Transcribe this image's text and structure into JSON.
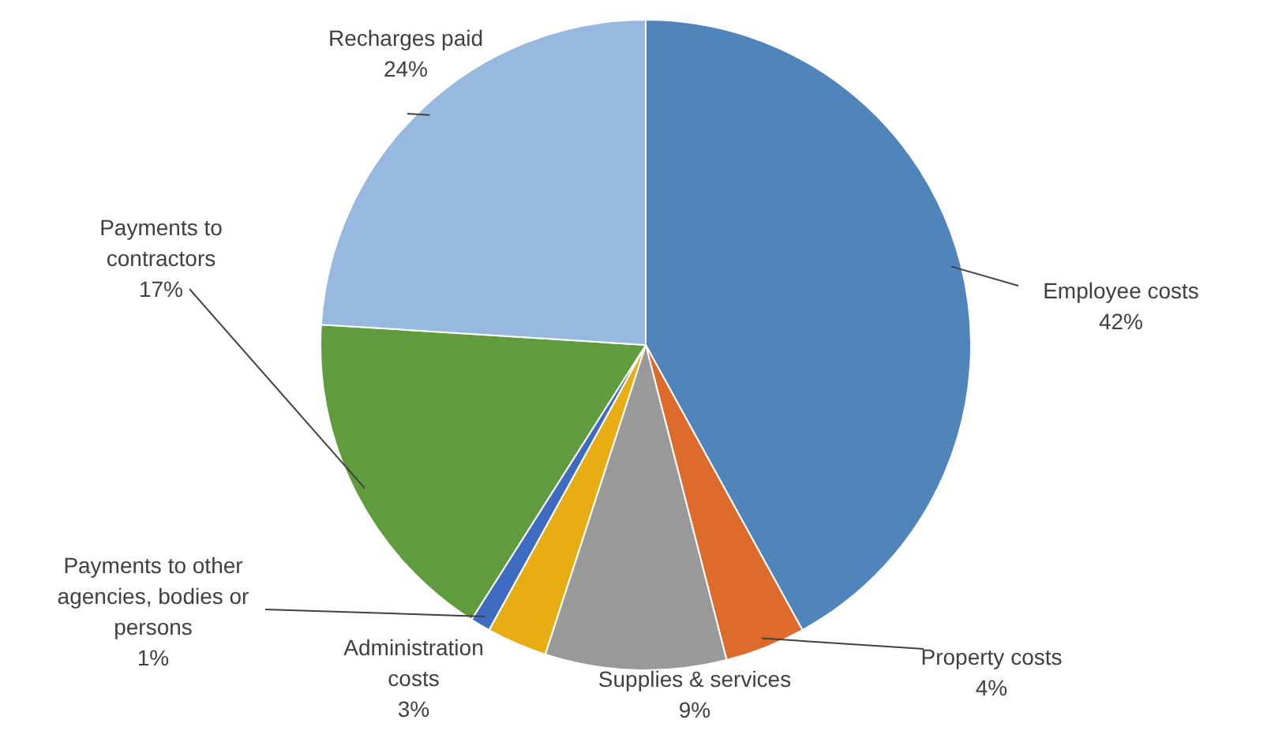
{
  "chart_data": {
    "type": "pie",
    "categories": [
      "Employee costs",
      "Property costs",
      "Supplies & services",
      "Administration costs",
      "Payments to other agencies, bodies or persons",
      "Payments to contractors",
      "Recharges paid"
    ],
    "values": [
      42,
      4,
      9,
      3,
      1,
      17,
      24
    ],
    "value_labels": [
      "42%",
      "4%",
      "9%",
      "3%",
      "1%",
      "17%",
      "24%"
    ],
    "colors": [
      "#4f85bb",
      "#dd6b2c",
      "#999999",
      "#e8ad12",
      "#3d6cc0",
      "#609b3d",
      "#97b9e0"
    ],
    "legend": false
  }
}
